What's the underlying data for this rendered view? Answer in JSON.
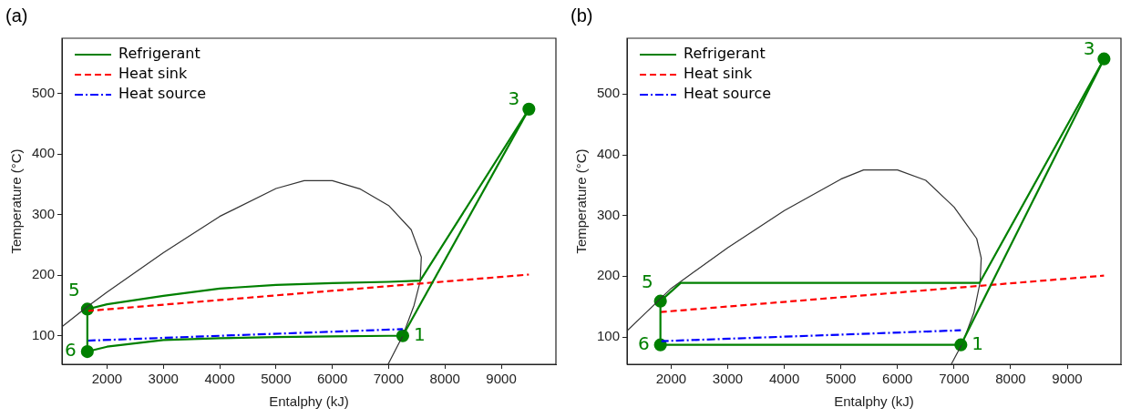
{
  "chart_data": [
    {
      "type": "line",
      "title": "(a)",
      "xlabel": "Entalphy (kJ)",
      "ylabel": "Temperature (°C)",
      "xlim": [
        1200,
        9970
      ],
      "ylim": [
        53,
        591
      ],
      "xticks": [
        2000,
        3000,
        4000,
        5000,
        6000,
        7000,
        8000,
        9000
      ],
      "yticks": [
        100,
        200,
        300,
        400,
        500
      ],
      "grid": false,
      "legend": "top left",
      "series": [
        {
          "name": "Refrigerant",
          "color": "#008000",
          "line_style": "solid",
          "x": [
            1650,
            2000,
            3000,
            4000,
            5000,
            6000,
            7000,
            7250
          ],
          "values": [
            74,
            82,
            93,
            96,
            98,
            99,
            100,
            100
          ]
        },
        {
          "color": "#008000",
          "line_style": "solid",
          "x": [
            7250,
            9490
          ],
          "values": [
            100,
            474
          ]
        },
        {
          "color": "#008000",
          "line_style": "solid",
          "x": [
            1650,
            2000,
            3000,
            4000,
            5000,
            6000,
            7000,
            7560,
            9490
          ],
          "values": [
            144,
            152,
            166,
            178,
            184,
            187,
            189,
            191,
            474
          ]
        },
        {
          "color": "#008000",
          "line_style": "solid",
          "x": [
            1650,
            1650
          ],
          "values": [
            144,
            74
          ]
        },
        {
          "name": "Heat sink",
          "color": "#ff0000",
          "line_style": "dashed",
          "x": [
            1650,
            9490
          ],
          "values": [
            141,
            201
          ]
        },
        {
          "name": "Heat source",
          "color": "#0000ff",
          "line_style": "dashdot",
          "x": [
            1650,
            7250
          ],
          "values": [
            92,
            111
          ]
        },
        {
          "color": "#333333",
          "line_style": "solid",
          "x": [
            1200,
            1650,
            2000,
            3000,
            4000,
            5000,
            5500,
            6000,
            6500,
            7000,
            7400,
            7580,
            7560,
            7450,
            7250,
            6990
          ],
          "values": [
            115,
            148,
            172,
            237,
            297,
            343,
            356,
            356,
            342,
            315,
            275,
            230,
            190,
            150,
            100,
            53
          ]
        },
        {
          "type": "scatter",
          "color": "#008000",
          "marker": "circle",
          "x": [
            7250,
            9490,
            1650,
            1650
          ],
          "values": [
            100,
            474,
            144,
            74
          ]
        }
      ],
      "annotations": [
        {
          "text": "1",
          "x": 7250,
          "y": 100
        },
        {
          "text": "3",
          "x": 9490,
          "y": 474
        },
        {
          "text": "5",
          "x": 1650,
          "y": 144
        },
        {
          "text": "6",
          "x": 1650,
          "y": 74
        }
      ]
    },
    {
      "type": "line",
      "title": "(b)",
      "xlabel": "Entalphy (kJ)",
      "ylabel": "Temperature (°C)",
      "xlim": [
        1220,
        9950
      ],
      "ylim": [
        55,
        592
      ],
      "xticks": [
        2000,
        3000,
        4000,
        5000,
        6000,
        7000,
        8000,
        9000
      ],
      "yticks": [
        100,
        200,
        300,
        400,
        500
      ],
      "grid": false,
      "legend": "top left",
      "series": [
        {
          "name": "Refrigerant",
          "color": "#008000",
          "line_style": "solid",
          "x": [
            1810,
            7120
          ],
          "values": [
            87,
            87
          ]
        },
        {
          "color": "#008000",
          "line_style": "solid",
          "x": [
            7120,
            9650
          ],
          "values": [
            87,
            558
          ]
        },
        {
          "color": "#008000",
          "line_style": "solid",
          "x": [
            1810,
            2170,
            7450,
            9650
          ],
          "values": [
            159,
            189,
            189,
            558
          ]
        },
        {
          "color": "#008000",
          "line_style": "solid",
          "x": [
            1810,
            1810
          ],
          "values": [
            159,
            87
          ]
        },
        {
          "name": "Heat sink",
          "color": "#ff0000",
          "line_style": "dashed",
          "x": [
            1810,
            9650
          ],
          "values": [
            141,
            201
          ]
        },
        {
          "name": "Heat source",
          "color": "#0000ff",
          "line_style": "dashdot",
          "x": [
            1810,
            7120
          ],
          "values": [
            93,
            111
          ]
        },
        {
          "color": "#333333",
          "line_style": "solid",
          "x": [
            1220,
            2000,
            3000,
            4000,
            5000,
            5400,
            6000,
            6500,
            7000,
            7400,
            7480,
            7460,
            7350,
            7150,
            6950
          ],
          "values": [
            110,
            180,
            247,
            308,
            360,
            375,
            375,
            358,
            314,
            262,
            230,
            190,
            140,
            90,
            55
          ]
        },
        {
          "type": "scatter",
          "color": "#008000",
          "marker": "circle",
          "x": [
            7120,
            9650,
            1810,
            1810
          ],
          "values": [
            87,
            558,
            159,
            87
          ]
        }
      ],
      "annotations": [
        {
          "text": "1",
          "x": 7120,
          "y": 87
        },
        {
          "text": "3",
          "x": 9650,
          "y": 558
        },
        {
          "text": "5",
          "x": 1810,
          "y": 159
        },
        {
          "text": "6",
          "x": 1810,
          "y": 87
        }
      ]
    }
  ]
}
